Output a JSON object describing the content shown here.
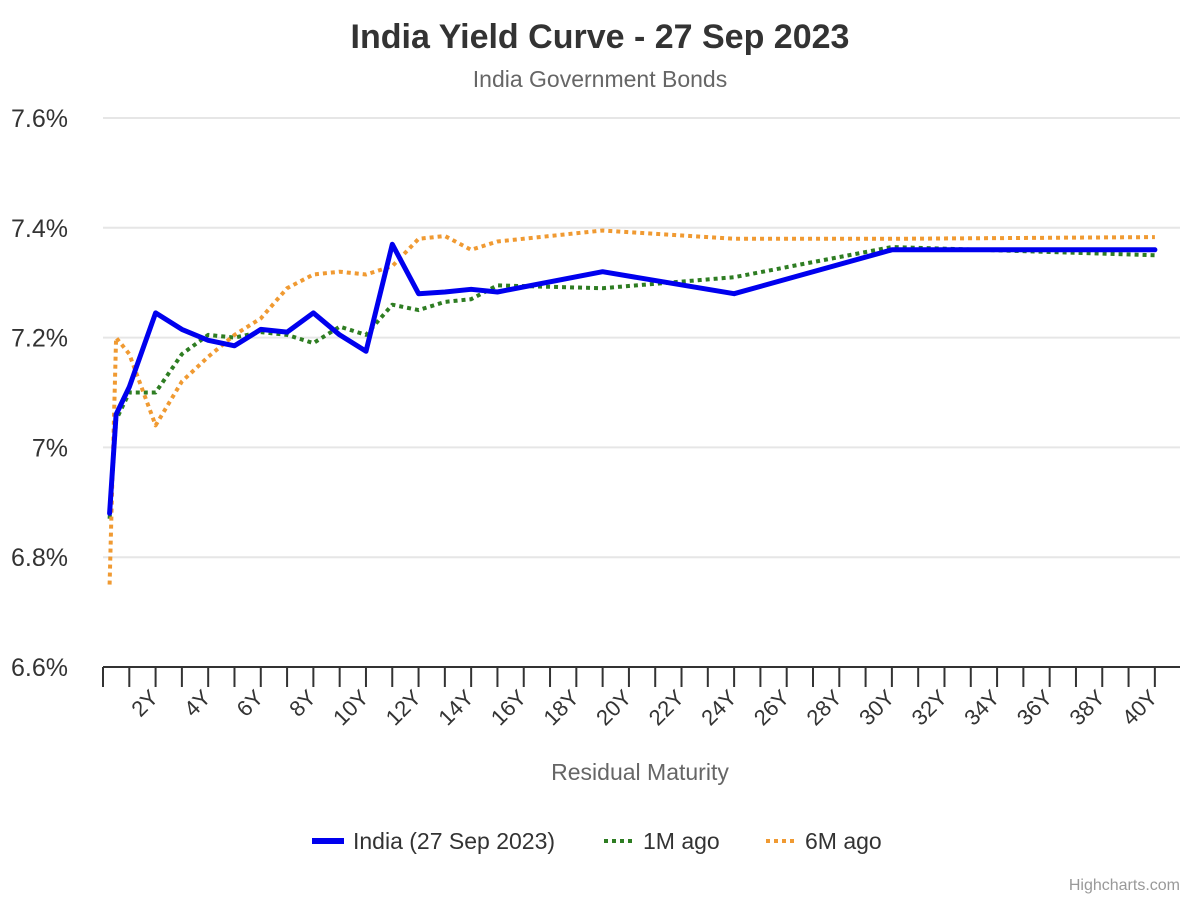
{
  "credits": "Highcharts.com",
  "chart_data": {
    "type": "line",
    "title": "India Yield Curve - 27 Sep 2023",
    "subtitle": "India Government Bonds",
    "xlabel": "Residual Maturity",
    "ylabel": "",
    "x_unit": "years",
    "xlim": [
      0,
      40.5
    ],
    "ylim": [
      6.6,
      7.6
    ],
    "y_ticks": [
      6.6,
      6.8,
      7.0,
      7.2,
      7.4,
      7.6
    ],
    "y_tick_labels": [
      "6.6%",
      "6.8%",
      "7%",
      "7.2%",
      "7.4%",
      "7.6%"
    ],
    "x_ticks": [
      2,
      4,
      6,
      8,
      10,
      12,
      14,
      16,
      18,
      20,
      22,
      24,
      26,
      28,
      30,
      32,
      34,
      36,
      38,
      40
    ],
    "x_tick_labels": [
      "2Y",
      "4Y",
      "6Y",
      "8Y",
      "10Y",
      "12Y",
      "14Y",
      "16Y",
      "18Y",
      "20Y",
      "22Y",
      "24Y",
      "26Y",
      "28Y",
      "30Y",
      "32Y",
      "34Y",
      "36Y",
      "38Y",
      "40Y"
    ],
    "grid": true,
    "legend_position": "bottom-center",
    "series": [
      {
        "name": "India (27 Sep 2023)",
        "color": "#0000ee",
        "dash": "solid",
        "points": [
          [
            0.25,
            6.88
          ],
          [
            0.5,
            7.06
          ],
          [
            1,
            7.11
          ],
          [
            2,
            7.245
          ],
          [
            3,
            7.215
          ],
          [
            4,
            7.195
          ],
          [
            5,
            7.185
          ],
          [
            6,
            7.215
          ],
          [
            7,
            7.21
          ],
          [
            8,
            7.245
          ],
          [
            9,
            7.205
          ],
          [
            10,
            7.175
          ],
          [
            11,
            7.37
          ],
          [
            12,
            7.28
          ],
          [
            13,
            7.283
          ],
          [
            14,
            7.288
          ],
          [
            15,
            7.283
          ],
          [
            19,
            7.32
          ],
          [
            24,
            7.28
          ],
          [
            30,
            7.36
          ],
          [
            40,
            7.36
          ]
        ]
      },
      {
        "name": "1M ago",
        "color": "#2e7d22",
        "dash": "dotted",
        "points": [
          [
            0.25,
            6.87
          ],
          [
            0.5,
            7.05
          ],
          [
            1,
            7.1
          ],
          [
            2,
            7.1
          ],
          [
            3,
            7.17
          ],
          [
            4,
            7.205
          ],
          [
            5,
            7.2
          ],
          [
            6,
            7.21
          ],
          [
            7,
            7.205
          ],
          [
            8,
            7.19
          ],
          [
            9,
            7.22
          ],
          [
            10,
            7.205
          ],
          [
            11,
            7.26
          ],
          [
            12,
            7.25
          ],
          [
            13,
            7.265
          ],
          [
            14,
            7.27
          ],
          [
            15,
            7.295
          ],
          [
            19,
            7.29
          ],
          [
            24,
            7.31
          ],
          [
            30,
            7.365
          ],
          [
            40,
            7.35
          ]
        ]
      },
      {
        "name": "6M ago",
        "color": "#f09a32",
        "dash": "dotted",
        "points": [
          [
            0.25,
            6.75
          ],
          [
            0.5,
            7.2
          ],
          [
            1,
            7.17
          ],
          [
            2,
            7.04
          ],
          [
            3,
            7.12
          ],
          [
            4,
            7.165
          ],
          [
            5,
            7.205
          ],
          [
            6,
            7.235
          ],
          [
            7,
            7.29
          ],
          [
            8,
            7.315
          ],
          [
            9,
            7.32
          ],
          [
            10,
            7.315
          ],
          [
            11,
            7.33
          ],
          [
            12,
            7.38
          ],
          [
            13,
            7.385
          ],
          [
            14,
            7.36
          ],
          [
            15,
            7.375
          ],
          [
            19,
            7.395
          ],
          [
            24,
            7.38
          ],
          [
            30,
            7.38
          ],
          [
            40,
            7.383
          ]
        ]
      }
    ]
  }
}
